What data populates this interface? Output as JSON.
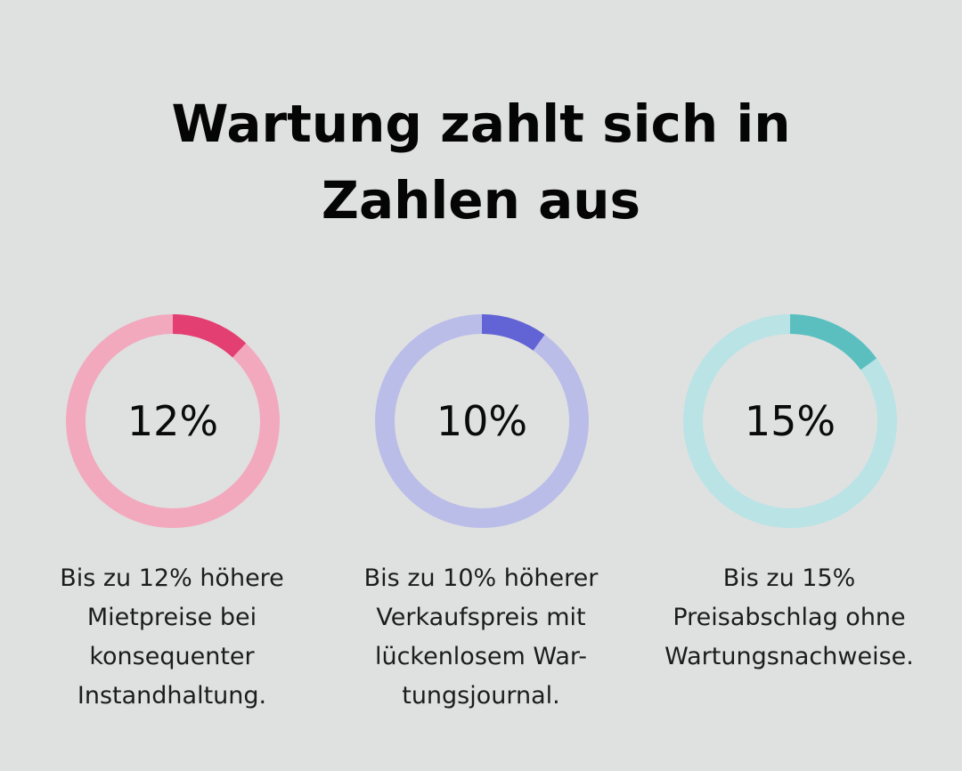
{
  "title_lines": [
    "Wartung zahlt sich in",
    "Zahlen aus"
  ],
  "chart_data": [
    {
      "type": "pie",
      "label": "12%",
      "value": 12,
      "max": 100,
      "description_lines": [
        "Bis zu 12% höhere",
        "Mietpreise bei",
        "konsequenter",
        "Instandhaltung."
      ],
      "colors": {
        "filled": "#e33f73",
        "track": "#f2a9be"
      }
    },
    {
      "type": "pie",
      "label": "10%",
      "value": 10,
      "max": 100,
      "description_lines": [
        "Bis zu 10% höherer",
        "Verkaufspreis mit",
        "lückenlosem War-",
        "tungsjournal."
      ],
      "colors": {
        "filled": "#6263d4",
        "track": "#bbbde9"
      }
    },
    {
      "type": "pie",
      "label": "15%",
      "value": 15,
      "max": 100,
      "description_lines": [
        "Bis zu 15%",
        "Preisabschlag ohne",
        "Wartungsnachweise."
      ],
      "colors": {
        "filled": "#5bbfc0",
        "track": "#b9e3e5"
      }
    }
  ]
}
